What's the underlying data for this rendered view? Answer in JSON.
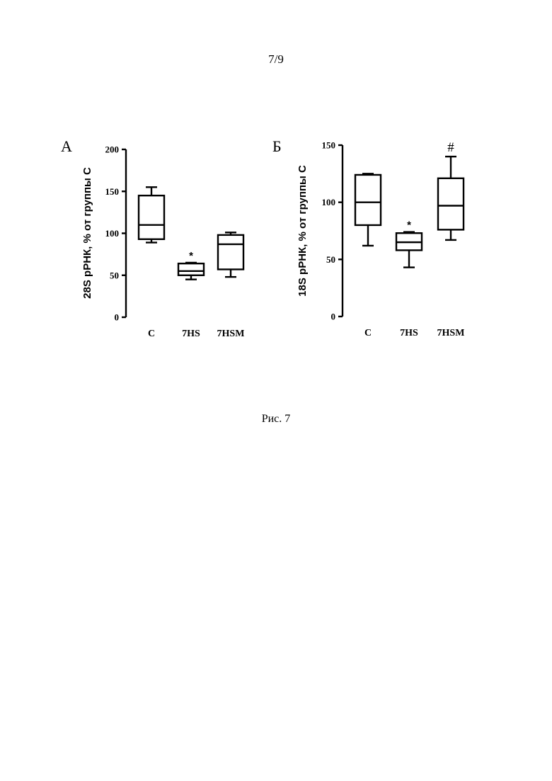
{
  "page": {
    "number": "7/9",
    "caption": "Рис. 7"
  },
  "chart_data": [
    {
      "panel": "А",
      "type": "box",
      "ylabel": "28S рРНК, % от группы С",
      "xlabel": "",
      "ylim": [
        0,
        200
      ],
      "yticks": [
        0,
        50,
        100,
        150,
        200
      ],
      "categories": [
        "C",
        "7HS",
        "7HSM"
      ],
      "boxes": [
        {
          "category": "C",
          "min": 89,
          "q1": 93,
          "median": 110,
          "q3": 145,
          "max": 155,
          "annotation": ""
        },
        {
          "category": "7HS",
          "min": 45,
          "q1": 50,
          "median": 55,
          "q3": 64,
          "max": 65,
          "annotation": "*"
        },
        {
          "category": "7HSM",
          "min": 48,
          "q1": 57,
          "median": 87,
          "q3": 98,
          "max": 101,
          "annotation": ""
        }
      ]
    },
    {
      "panel": "Б",
      "type": "box",
      "ylabel": "18S рРНК, % от группы С",
      "xlabel": "",
      "ylim": [
        0,
        150
      ],
      "yticks": [
        0,
        50,
        100,
        150
      ],
      "categories": [
        "C",
        "7HS",
        "7HSM"
      ],
      "boxes": [
        {
          "category": "C",
          "min": 62,
          "q1": 80,
          "median": 100,
          "q3": 124,
          "max": 125,
          "annotation": ""
        },
        {
          "category": "7HS",
          "min": 43,
          "q1": 58,
          "median": 65,
          "q3": 73,
          "max": 74,
          "annotation": "*"
        },
        {
          "category": "7HSM",
          "min": 67,
          "q1": 76,
          "median": 97,
          "q3": 121,
          "max": 140,
          "annotation": "#"
        }
      ]
    }
  ]
}
